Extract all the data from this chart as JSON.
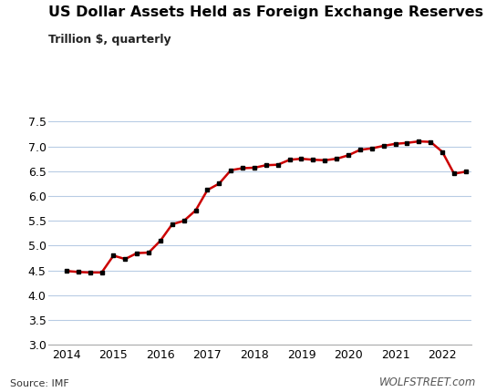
{
  "title": "US Dollar Assets Held as Foreign Exchange Reserves",
  "subtitle": "Trillion $, quarterly",
  "source": "Source: IMF",
  "watermark": "WOLFSTREET.com",
  "line_color": "#CC0000",
  "marker_color": "#000000",
  "background_color": "#ffffff",
  "grid_color": "#b8cce4",
  "ylim": [
    3.0,
    7.5
  ],
  "yticks": [
    3.0,
    3.5,
    4.0,
    4.5,
    5.0,
    5.5,
    6.0,
    6.5,
    7.0,
    7.5
  ],
  "xtick_labels": [
    "2014",
    "2015",
    "2016",
    "2017",
    "2018",
    "2019",
    "2020",
    "2021",
    "2022"
  ],
  "xlim": [
    2013.62,
    2022.62
  ],
  "x_values": [
    2014.0,
    2014.25,
    2014.5,
    2014.75,
    2015.0,
    2015.25,
    2015.5,
    2015.75,
    2016.0,
    2016.25,
    2016.5,
    2016.75,
    2017.0,
    2017.25,
    2017.5,
    2017.75,
    2018.0,
    2018.25,
    2018.5,
    2018.75,
    2019.0,
    2019.25,
    2019.5,
    2019.75,
    2020.0,
    2020.25,
    2020.5,
    2020.75,
    2021.0,
    2021.25,
    2021.5,
    2021.75,
    2022.0,
    2022.25,
    2022.5
  ],
  "y_values": [
    4.49,
    4.47,
    4.46,
    4.46,
    4.8,
    4.73,
    4.85,
    4.86,
    5.1,
    5.43,
    5.5,
    5.71,
    6.12,
    6.25,
    6.52,
    6.56,
    6.57,
    6.62,
    6.63,
    6.73,
    6.75,
    6.73,
    6.72,
    6.75,
    6.82,
    6.93,
    6.96,
    7.01,
    7.05,
    7.07,
    7.1,
    7.09,
    6.89,
    6.45,
    6.49
  ]
}
